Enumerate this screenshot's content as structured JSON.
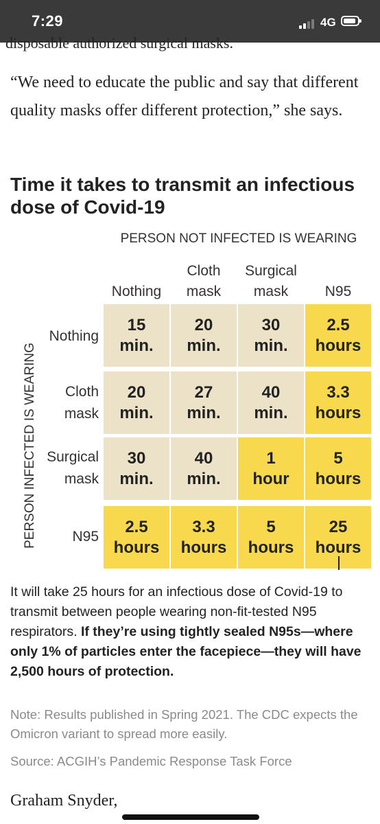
{
  "status_bar": {
    "time": "7:29",
    "network": "4G"
  },
  "article": {
    "clipped_previous_line": "disposable authorized surgical masks.",
    "quote": "“We need to educate the public and say that different quality masks offer different protection,” she says."
  },
  "graphic": {
    "title": "Time it takes to transmit an infectious dose of Covid-19",
    "column_heading": "PERSON NOT INFECTED IS WEARING",
    "row_heading": "PERSON INFECTED IS WEARING",
    "columns": [
      {
        "line1": "",
        "line2": "Nothing"
      },
      {
        "line1": "Cloth",
        "line2": "mask"
      },
      {
        "line1": "Surgical",
        "line2": "mask"
      },
      {
        "line1": "",
        "line2": "N95"
      }
    ],
    "rows": [
      {
        "line1": "Nothing",
        "line2": "",
        "cells": [
          {
            "value": "15",
            "unit": "min.",
            "color": "#ece2c8"
          },
          {
            "value": "20",
            "unit": "min.",
            "color": "#ece2c8"
          },
          {
            "value": "30",
            "unit": "min.",
            "color": "#ece2c8"
          },
          {
            "value": "2.5",
            "unit": "hours",
            "color": "#f8d84d"
          }
        ]
      },
      {
        "line1": "Cloth",
        "line2": "mask",
        "cells": [
          {
            "value": "20",
            "unit": "min.",
            "color": "#ece2c8"
          },
          {
            "value": "27",
            "unit": "min.",
            "color": "#ece2c8"
          },
          {
            "value": "40",
            "unit": "min.",
            "color": "#ece2c8"
          },
          {
            "value": "3.3",
            "unit": "hours",
            "color": "#f8d84d"
          }
        ]
      },
      {
        "line1": "Surgical",
        "line2": "mask",
        "cells": [
          {
            "value": "30",
            "unit": "min.",
            "color": "#ece2c8"
          },
          {
            "value": "40",
            "unit": "min.",
            "color": "#ece2c8"
          },
          {
            "value": "1",
            "unit": "hour",
            "color": "#f8d84d"
          },
          {
            "value": "5",
            "unit": "hours",
            "color": "#f8d84d"
          }
        ]
      },
      {
        "line1": "N95",
        "line2": "",
        "cells": [
          {
            "value": "2.5",
            "unit": "hours",
            "color": "#f8d84d"
          },
          {
            "value": "3.3",
            "unit": "hours",
            "color": "#f8d84d"
          },
          {
            "value": "5",
            "unit": "hours",
            "color": "#f8d84d"
          },
          {
            "value": "25",
            "unit": "hours",
            "color": "#f8d84d"
          }
        ]
      }
    ],
    "callout_plain": "It will take 25 hours for an infectious dose of Covid-19 to transmit between people wearing non-fit-tested N95 respirators. ",
    "callout_bold": "If they’re using tightly sealed N95s—where only 1% of particles enter the facepiece—they will have 2,500 hours of protection.",
    "note": "Note: Results published in Spring 2021. The CDC expects the Omicron variant to spread more easily.",
    "source": "Source: ACGIH’s Pandemic Response Task Force"
  },
  "byline": "Graham Snyder,"
}
